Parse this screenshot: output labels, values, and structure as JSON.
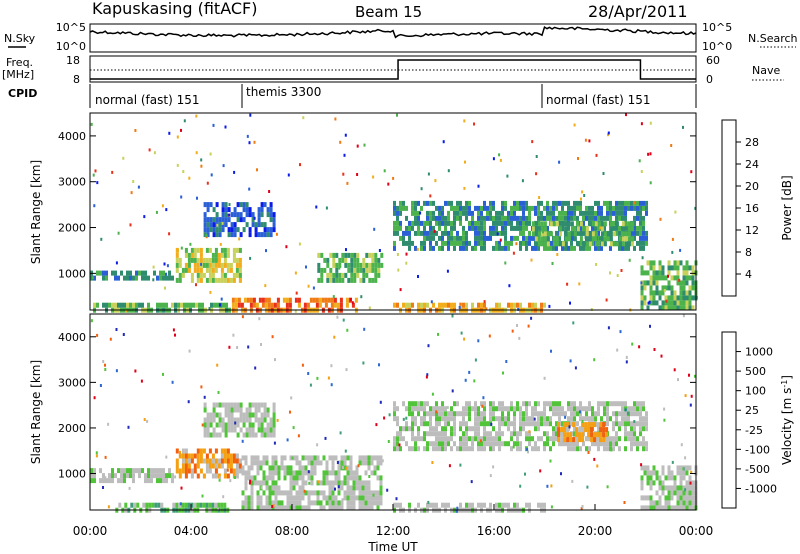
{
  "header": {
    "station": "Kapuskasing (fitACF)",
    "beam": "Beam 15",
    "date": "28/Apr/2011"
  },
  "nsky_panel": {
    "left_label": "N.Sky",
    "right_label": "N.Search",
    "left_ticks": [
      "10^5",
      "10^0"
    ],
    "right_ticks": [
      "10^5",
      "10^0"
    ]
  },
  "freq_panel": {
    "left_label_1": "Freq.",
    "left_label_2": "[MHz]",
    "right_label": "Nave",
    "left_ticks": [
      "18",
      "8"
    ],
    "right_ticks": [
      "60",
      "0"
    ]
  },
  "cpid": {
    "label": "CPID",
    "segments": [
      {
        "name": "normal (fast) 151",
        "start_h": 0,
        "end_h": 6
      },
      {
        "name": "themis 3300",
        "start_h": 6,
        "end_h": 18
      },
      {
        "name": "normal (fast) 151",
        "start_h": 18,
        "end_h": 24
      }
    ]
  },
  "colors": {
    "power": [
      "#0b1be8",
      "#2a5fd6",
      "#2f8c6e",
      "#4cb24c",
      "#c8d25a",
      "#f2ad1c",
      "#f07a14",
      "#e8301a",
      "#e0001a"
    ],
    "velocity": [
      "#1f2bb8",
      "#2c69d2",
      "#3f9e78",
      "#52c43a",
      "#bdbdbd",
      "#bdbdbd",
      "#f5a012",
      "#f2600d",
      "#e0001a"
    ]
  },
  "chart_data": [
    {
      "type": "heatmap",
      "name": "power",
      "ylabel": "Slant Range [km]",
      "y_ticks": [
        "1000",
        "2000",
        "3000",
        "4000"
      ],
      "ylim": [
        200,
        4500
      ],
      "xlim": [
        0,
        24
      ],
      "colorbar": {
        "label": "Power [dB]",
        "ticks": [
          "4",
          "8",
          "12",
          "16",
          "20",
          "24",
          "28"
        ]
      },
      "regions": [
        {
          "t0": 0.0,
          "t1": 3.3,
          "r0": 950,
          "r1": 1150,
          "level": 2
        },
        {
          "t0": 3.4,
          "t1": 6.0,
          "r0": 900,
          "r1": 1600,
          "level": 4
        },
        {
          "t0": 4.5,
          "t1": 7.3,
          "r0": 1900,
          "r1": 2600,
          "level": 1
        },
        {
          "t0": 0.0,
          "t1": 5.5,
          "r0": 250,
          "r1": 420,
          "level": 3
        },
        {
          "t0": 5.5,
          "t1": 10.5,
          "r0": 250,
          "r1": 520,
          "level": 6
        },
        {
          "t0": 9.0,
          "t1": 11.5,
          "r0": 900,
          "r1": 1500,
          "level": 3
        },
        {
          "t0": 12.0,
          "t1": 22.0,
          "r0": 1600,
          "r1": 2600,
          "level": 2
        },
        {
          "t0": 17.5,
          "t1": 21.5,
          "r0": 1700,
          "r1": 2200,
          "level": 3
        },
        {
          "t0": 12.0,
          "t1": 18.0,
          "r0": 250,
          "r1": 450,
          "level": 5
        },
        {
          "t0": 21.8,
          "t1": 24.0,
          "r0": 300,
          "r1": 1300,
          "level": 3
        }
      ]
    },
    {
      "type": "heatmap",
      "name": "velocity",
      "ylabel": "Slant Range [km]",
      "y_ticks": [
        "1000",
        "2000",
        "3000",
        "4000"
      ],
      "ylim": [
        200,
        4500
      ],
      "xlim": [
        0,
        24
      ],
      "colorbar": {
        "label": "Velocity [m s",
        "sup": "-1",
        "label_end": "]",
        "ticks": [
          "1000",
          "500",
          "100",
          "25",
          "-25",
          "-100",
          "-500",
          "-1000"
        ]
      },
      "regions": [
        {
          "t0": 0.0,
          "t1": 3.3,
          "r0": 900,
          "r1": 1150,
          "level": 4
        },
        {
          "t0": 3.4,
          "t1": 6.0,
          "r0": 1000,
          "r1": 1600,
          "level": 6
        },
        {
          "t0": 4.5,
          "t1": 7.3,
          "r0": 1900,
          "r1": 2600,
          "level": 4
        },
        {
          "t0": 6.0,
          "t1": 11.5,
          "r0": 300,
          "r1": 1400,
          "level": 4
        },
        {
          "t0": 12.0,
          "t1": 22.0,
          "r0": 1600,
          "r1": 2600,
          "level": 4
        },
        {
          "t0": 18.5,
          "t1": 20.5,
          "r0": 1800,
          "r1": 2200,
          "level": 6
        },
        {
          "t0": 1.0,
          "t1": 5.5,
          "r0": 250,
          "r1": 450,
          "level": 3
        },
        {
          "t0": 12.0,
          "t1": 18.0,
          "r0": 250,
          "r1": 450,
          "level": 4
        },
        {
          "t0": 21.8,
          "t1": 24.0,
          "r0": 300,
          "r1": 1200,
          "level": 4
        }
      ]
    }
  ],
  "x_axis": {
    "label": "Time UT",
    "ticks": [
      "00:00",
      "04:00",
      "08:00",
      "12:00",
      "16:00",
      "20:00",
      "00:00"
    ]
  }
}
